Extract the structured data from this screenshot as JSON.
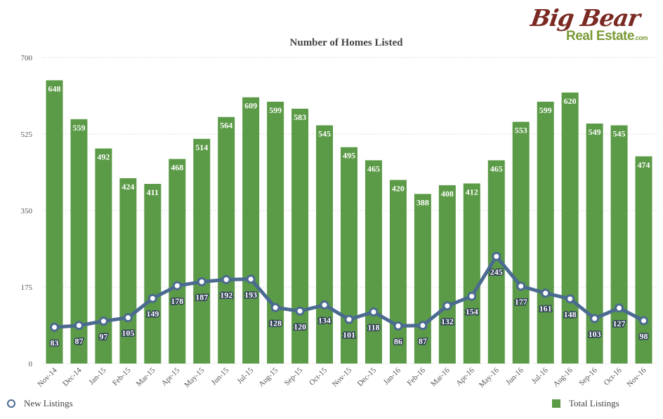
{
  "logo": {
    "line1": "Big Bear",
    "line2": "Real Estate",
    "suffix": ".com"
  },
  "colors": {
    "bar": "#5b9a47",
    "line": "#4a6a90",
    "grid": "#cccccc"
  },
  "legend": {
    "line_label": "New Listings",
    "bar_label": "Total Listings"
  },
  "chart_data": {
    "type": "bar",
    "title": "Number of Homes Listed",
    "categories": [
      "Nov-14",
      "Dec-14",
      "Jan-15",
      "Feb-15",
      "Mar-15",
      "Apr-15",
      "May-15",
      "Jun-15",
      "Jul-15",
      "Aug-15",
      "Sep-15",
      "Oct-15",
      "Nov-15",
      "Dec-15",
      "Jan-16",
      "Feb-16",
      "Mar-16",
      "Apr-16",
      "May-16",
      "Jun-16",
      "Jul-16",
      "Aug-16",
      "Sep-16",
      "Oct-16",
      "Nov-16"
    ],
    "ylim": [
      0,
      700
    ],
    "yticks": [
      0,
      175,
      350,
      525,
      700
    ],
    "grid": true,
    "legend_position": "bottom",
    "series": [
      {
        "name": "Total Listings",
        "type": "bar",
        "values": [
          648,
          559,
          492,
          424,
          411,
          468,
          514,
          564,
          609,
          599,
          583,
          545,
          495,
          465,
          420,
          388,
          408,
          412,
          465,
          553,
          599,
          620,
          549,
          545,
          474
        ]
      },
      {
        "name": "New Listings",
        "type": "line",
        "values": [
          83,
          87,
          97,
          105,
          149,
          178,
          187,
          192,
          193,
          128,
          120,
          134,
          101,
          118,
          86,
          87,
          132,
          154,
          245,
          177,
          161,
          148,
          103,
          127,
          98
        ]
      }
    ]
  }
}
